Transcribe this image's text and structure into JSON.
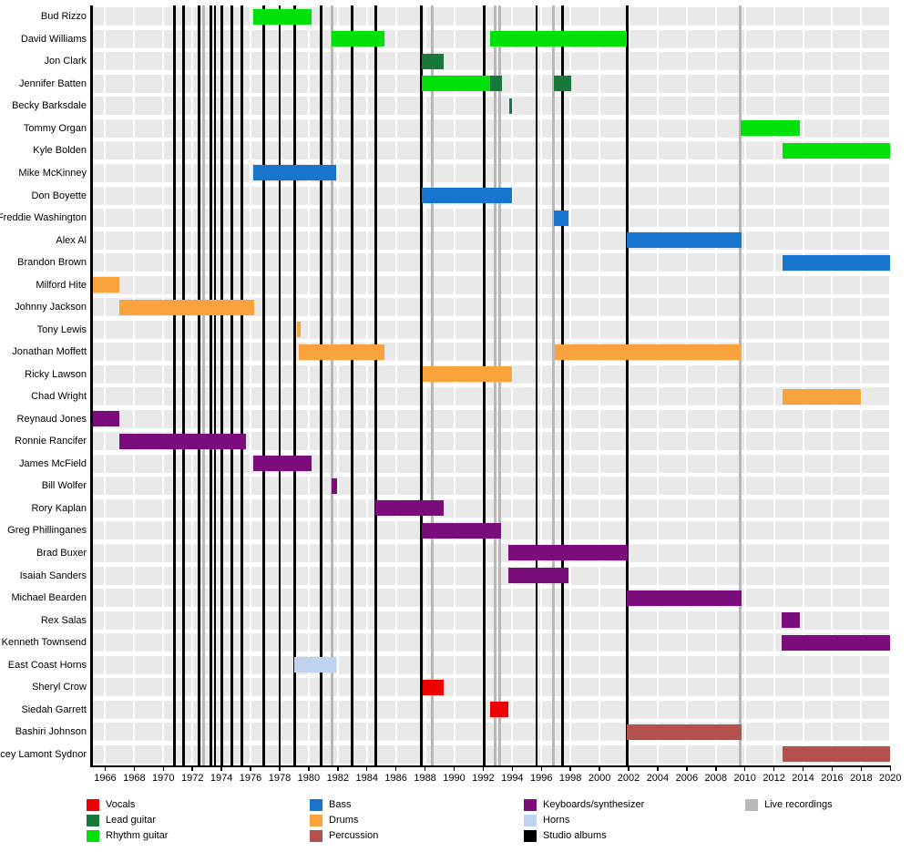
{
  "chart_data": {
    "type": "bar",
    "variant": "gantt-member-timeline",
    "title": "",
    "x_axis": {
      "min": 1965,
      "max": 2020.1,
      "tick_step": 2,
      "ticks": [
        1966,
        1968,
        1970,
        1972,
        1974,
        1976,
        1978,
        1980,
        1982,
        1984,
        1986,
        1988,
        1990,
        1992,
        1994,
        1996,
        1998,
        2000,
        2002,
        2004,
        2006,
        2008,
        2010,
        2012,
        2014,
        2016,
        2018,
        2020
      ]
    },
    "roles": {
      "vocals": {
        "label": "Vocals",
        "color": "#ee0000"
      },
      "lead_guitar": {
        "label": "Lead guitar",
        "color": "#16793b"
      },
      "rhythm_guitar": {
        "label": "Rhythm guitar",
        "color": "#00e10c"
      },
      "bass": {
        "label": "Bass",
        "color": "#1874cd"
      },
      "drums": {
        "label": "Drums",
        "color": "#faa23c"
      },
      "percussion": {
        "label": "Percussion",
        "color": "#b5514c"
      },
      "keyboards": {
        "label": "Keyboards/synthesizer",
        "color": "#7a0c7c"
      },
      "horns": {
        "label": "Horns",
        "color": "#bed3f0"
      },
      "studio_albums": {
        "label": "Studio albums",
        "color": "#000000"
      },
      "live_recordings": {
        "label": "Live recordings",
        "color": "#b8b8b8"
      }
    },
    "legend_columns": [
      [
        "vocals",
        "lead_guitar",
        "rhythm_guitar"
      ],
      [
        "bass",
        "drums",
        "percussion"
      ],
      [
        "keyboards",
        "horns",
        "studio_albums"
      ],
      [
        "live_recordings"
      ]
    ],
    "members": [
      {
        "name": "Bud Rizzo",
        "bars": [
          {
            "role": "rhythm_guitar",
            "start": 1976.17,
            "end": 1980.2
          }
        ]
      },
      {
        "name": "David Williams",
        "bars": [
          {
            "role": "rhythm_guitar",
            "start": 1981.6,
            "end": 1985.2
          },
          {
            "role": "rhythm_guitar",
            "start": 1992.5,
            "end": 2001.9
          }
        ]
      },
      {
        "name": "Jon Clark",
        "bars": [
          {
            "role": "lead_guitar",
            "start": 1987.8,
            "end": 1989.3
          }
        ]
      },
      {
        "name": "Jennifer Batten",
        "bars": [
          {
            "role": "rhythm_guitar",
            "start": 1987.8,
            "end": 1992.5
          },
          {
            "role": "lead_guitar",
            "start": 1992.5,
            "end": 1993.26
          },
          {
            "role": "lead_guitar",
            "start": 1996.85,
            "end": 1998.05
          }
        ]
      },
      {
        "name": "Becky Barksdale",
        "bars": [
          {
            "role": "lead_guitar",
            "start": 1993.78,
            "end": 1994.0
          }
        ]
      },
      {
        "name": "Tommy Organ",
        "bars": [
          {
            "role": "rhythm_guitar",
            "start": 2009.7,
            "end": 2013.8
          }
        ]
      },
      {
        "name": "Kyle Bolden",
        "bars": [
          {
            "role": "rhythm_guitar",
            "start": 2012.6,
            "end": 2020.05
          }
        ]
      },
      {
        "name": "Mike McKinney",
        "bars": [
          {
            "role": "bass",
            "start": 1976.17,
            "end": 1981.9
          }
        ]
      },
      {
        "name": "Don Boyette",
        "bars": [
          {
            "role": "bass",
            "start": 1987.8,
            "end": 1994.0
          }
        ]
      },
      {
        "name": "Freddie Washington",
        "bars": [
          {
            "role": "bass",
            "start": 1996.85,
            "end": 1997.85
          }
        ]
      },
      {
        "name": "Alex Al",
        "bars": [
          {
            "role": "bass",
            "start": 2001.9,
            "end": 2009.75
          }
        ]
      },
      {
        "name": "Brandon Brown",
        "bars": [
          {
            "role": "bass",
            "start": 2012.6,
            "end": 2020.05
          }
        ]
      },
      {
        "name": "Milford Hite",
        "bars": [
          {
            "role": "drums",
            "start": 1965.15,
            "end": 1967.0
          }
        ]
      },
      {
        "name": "Johnny Jackson",
        "bars": [
          {
            "role": "drums",
            "start": 1967.0,
            "end": 1976.27
          }
        ]
      },
      {
        "name": "Tony Lewis",
        "bars": [
          {
            "role": "drums",
            "start": 1979.2,
            "end": 1979.45
          }
        ]
      },
      {
        "name": "Jonathan Moffett",
        "bars": [
          {
            "role": "drums",
            "start": 1979.3,
            "end": 1985.2
          },
          {
            "role": "drums",
            "start": 1996.9,
            "end": 2009.7
          }
        ]
      },
      {
        "name": "Ricky Lawson",
        "bars": [
          {
            "role": "drums",
            "start": 1987.85,
            "end": 1993.95
          }
        ]
      },
      {
        "name": "Chad Wright",
        "bars": [
          {
            "role": "drums",
            "start": 2012.6,
            "end": 2018.0
          }
        ]
      },
      {
        "name": "Reynaud Jones",
        "bars": [
          {
            "role": "keyboards",
            "start": 1965.15,
            "end": 1967.0
          }
        ]
      },
      {
        "name": "Ronnie Rancifer",
        "bars": [
          {
            "role": "keyboards",
            "start": 1967.0,
            "end": 1975.7
          }
        ]
      },
      {
        "name": "James McField",
        "bars": [
          {
            "role": "keyboards",
            "start": 1976.17,
            "end": 1980.2
          }
        ]
      },
      {
        "name": "Bill Wolfer",
        "bars": [
          {
            "role": "keyboards",
            "start": 1981.6,
            "end": 1981.95
          }
        ]
      },
      {
        "name": "Rory Kaplan",
        "bars": [
          {
            "role": "keyboards",
            "start": 1984.6,
            "end": 1989.25
          }
        ]
      },
      {
        "name": "Greg Phillinganes",
        "bars": [
          {
            "role": "keyboards",
            "start": 1987.8,
            "end": 1993.2
          }
        ]
      },
      {
        "name": "Brad Buxer",
        "bars": [
          {
            "role": "keyboards",
            "start": 1993.7,
            "end": 2001.92
          }
        ]
      },
      {
        "name": "Isaiah Sanders",
        "bars": [
          {
            "role": "keyboards",
            "start": 1993.7,
            "end": 1997.85
          }
        ]
      },
      {
        "name": "Michael Bearden",
        "bars": [
          {
            "role": "keyboards",
            "start": 2001.9,
            "end": 2009.75
          }
        ]
      },
      {
        "name": "Rex Salas",
        "bars": [
          {
            "role": "keyboards",
            "start": 2012.55,
            "end": 2013.8
          }
        ]
      },
      {
        "name": "Kenneth Townsend",
        "bars": [
          {
            "role": "keyboards",
            "start": 2012.55,
            "end": 2020.05
          }
        ]
      },
      {
        "name": "East Coast Horns",
        "bars": [
          {
            "role": "horns",
            "start": 1979.0,
            "end": 1981.9
          }
        ]
      },
      {
        "name": "Sheryl Crow",
        "bars": [
          {
            "role": "vocals",
            "start": 1987.85,
            "end": 1989.25
          }
        ]
      },
      {
        "name": "Siedah Garrett",
        "bars": [
          {
            "role": "vocals",
            "start": 1992.45,
            "end": 1993.7
          }
        ]
      },
      {
        "name": "Bashiri Johnson",
        "bars": [
          {
            "role": "percussion",
            "start": 2001.9,
            "end": 2009.75
          }
        ]
      },
      {
        "name": "Stacey Lamont Sydnor",
        "bars": [
          {
            "role": "percussion",
            "start": 2012.6,
            "end": 2020.05
          }
        ]
      }
    ],
    "event_lines": {
      "studio_albums": [
        1970.75,
        1971.4,
        1972.45,
        1973.25,
        1973.55,
        1974.0,
        1974.7,
        1975.4,
        1976.9,
        1978.0,
        1979.03,
        1980.85,
        1983.0,
        1984.6,
        1987.75,
        1992.05,
        1995.67,
        1997.45,
        2001.9
      ],
      "live_recordings": [
        1972.75,
        1981.6,
        1988.5,
        1992.85,
        1993.15,
        1996.85,
        2009.7
      ]
    }
  }
}
